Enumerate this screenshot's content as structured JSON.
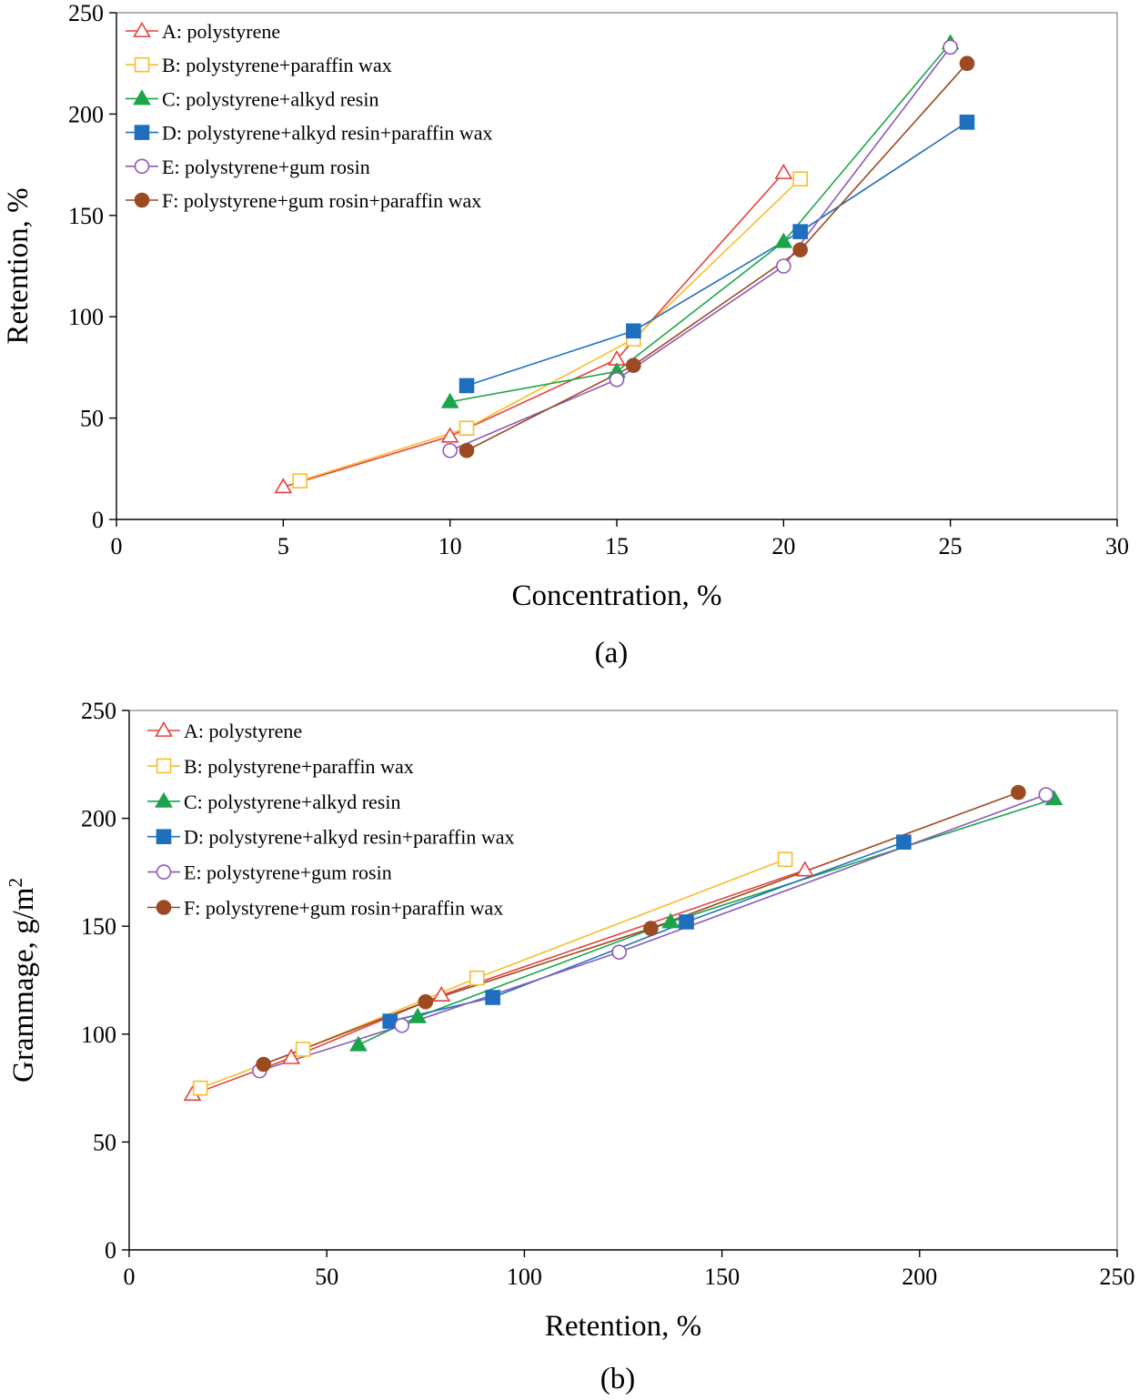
{
  "chart_data": [
    {
      "type": "line",
      "caption": "(a)",
      "xlabel": "Concentration, %",
      "ylabel": "Retention, %",
      "xlim": [
        0,
        30
      ],
      "ylim": [
        0,
        250
      ],
      "xticks": [
        0,
        5,
        10,
        15,
        20,
        25,
        30
      ],
      "yticks": [
        0,
        50,
        100,
        150,
        200,
        250
      ],
      "grid": false,
      "legend_position": "top-left",
      "series": [
        {
          "name": "A: polystyrene",
          "marker": "triangle-open",
          "color": "#e8403a",
          "points": [
            [
              5,
              16
            ],
            [
              10,
              41
            ],
            [
              15,
              79
            ],
            [
              20,
              171
            ]
          ]
        },
        {
          "name": "B: polystyrene+paraffin wax",
          "marker": "square-open",
          "color": "#f7bd2e",
          "points": [
            [
              5.5,
              19
            ],
            [
              10.5,
              45
            ],
            [
              15.5,
              89
            ],
            [
              20.5,
              168
            ]
          ]
        },
        {
          "name": "C: polystyrene+alkyd resin",
          "marker": "triangle-filled",
          "color": "#1aa54a",
          "points": [
            [
              10,
              58
            ],
            [
              15,
              73
            ],
            [
              20,
              137
            ],
            [
              25,
              235
            ]
          ]
        },
        {
          "name": "D: polystyrene+alkyd resin+paraffin wax",
          "marker": "square-filled",
          "color": "#1f6fc0",
          "points": [
            [
              10.5,
              66
            ],
            [
              15.5,
              93
            ],
            [
              20.5,
              142
            ],
            [
              25.5,
              196
            ]
          ]
        },
        {
          "name": "E: polystyrene+gum rosin",
          "marker": "circle-open",
          "color": "#8e59b8",
          "points": [
            [
              10,
              34
            ],
            [
              15,
              69
            ],
            [
              20,
              125
            ],
            [
              25,
              233
            ]
          ]
        },
        {
          "name": "F: polystyrene+gum rosin+paraffin wax",
          "marker": "circle-filled",
          "color": "#9b4a22",
          "points": [
            [
              10.5,
              34
            ],
            [
              15.5,
              76
            ],
            [
              20.5,
              133
            ],
            [
              25.5,
              225
            ]
          ]
        }
      ]
    },
    {
      "type": "line",
      "caption": "(b)",
      "xlabel": "Retention, %",
      "ylabel": "Grammage,  g/m",
      "ylabel_sup": "2",
      "xlim": [
        0,
        250
      ],
      "ylim": [
        0,
        250
      ],
      "xticks": [
        0,
        50,
        100,
        150,
        200,
        250
      ],
      "yticks": [
        0,
        50,
        100,
        150,
        200,
        250
      ],
      "grid": false,
      "legend_position": "top-left",
      "series": [
        {
          "name": "A: polystyrene",
          "marker": "triangle-open",
          "color": "#e8403a",
          "points": [
            [
              16,
              72
            ],
            [
              41,
              89
            ],
            [
              79,
              118
            ],
            [
              171,
              176
            ]
          ]
        },
        {
          "name": "B: polystyrene+paraffin wax",
          "marker": "square-open",
          "color": "#f7bd2e",
          "points": [
            [
              18,
              75
            ],
            [
              44,
              93
            ],
            [
              88,
              126
            ],
            [
              166,
              181
            ]
          ]
        },
        {
          "name": "C: polystyrene+alkyd resin",
          "marker": "triangle-filled",
          "color": "#1aa54a",
          "points": [
            [
              58,
              95
            ],
            [
              73,
              108
            ],
            [
              137,
              152
            ],
            [
              234,
              209
            ]
          ]
        },
        {
          "name": "D: polystyrene+alkyd resin+paraffin wax",
          "marker": "square-filled",
          "color": "#1f6fc0",
          "points": [
            [
              66,
              106
            ],
            [
              92,
              117
            ],
            [
              141,
              152
            ],
            [
              196,
              189
            ]
          ]
        },
        {
          "name": "E: polystyrene+gum rosin",
          "marker": "circle-open",
          "color": "#8e59b8",
          "points": [
            [
              33,
              83
            ],
            [
              69,
              104
            ],
            [
              124,
              138
            ],
            [
              232,
              211
            ]
          ]
        },
        {
          "name": "F: polystyrene+gum rosin+paraffin wax",
          "marker": "circle-filled",
          "color": "#9b4a22",
          "points": [
            [
              34,
              86
            ],
            [
              75,
              115
            ],
            [
              132,
              149
            ],
            [
              225,
              212
            ]
          ]
        }
      ]
    }
  ]
}
